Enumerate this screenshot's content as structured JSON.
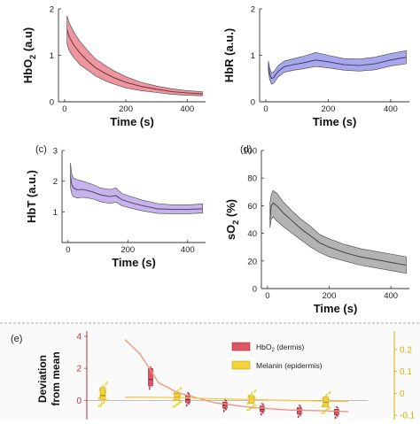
{
  "panel_labels": {
    "c": "(c)",
    "d": "(d)",
    "e": "(e)"
  },
  "chart_data": [
    {
      "id": "hbo2",
      "type": "area",
      "ylabel": "HbO",
      "ylabel_sub": "2",
      "ylabel_unit": " (a.u)",
      "xlabel": "Time (s)",
      "xlim": [
        -20,
        460
      ],
      "ylim": [
        0,
        2
      ],
      "xticks": [
        0,
        200,
        400
      ],
      "yticks": [
        0,
        1,
        2
      ],
      "color": "#e8737f",
      "x": [
        8,
        15,
        30,
        50,
        75,
        100,
        130,
        160,
        200,
        250,
        300,
        350,
        400,
        450
      ],
      "mean": [
        1.55,
        1.4,
        1.22,
        1.05,
        0.88,
        0.74,
        0.62,
        0.52,
        0.42,
        0.33,
        0.27,
        0.22,
        0.19,
        0.17
      ],
      "upper": [
        1.85,
        1.7,
        1.5,
        1.3,
        1.1,
        0.93,
        0.79,
        0.67,
        0.54,
        0.42,
        0.34,
        0.28,
        0.24,
        0.22
      ],
      "lower": [
        1.25,
        1.1,
        0.95,
        0.8,
        0.68,
        0.56,
        0.46,
        0.38,
        0.3,
        0.24,
        0.2,
        0.16,
        0.14,
        0.13
      ]
    },
    {
      "id": "hbr",
      "type": "area",
      "ylabel": "HbR",
      "ylabel_unit": " (a.u.)",
      "xlabel": "Time (s)",
      "xlim": [
        -20,
        460
      ],
      "ylim": [
        0,
        2
      ],
      "xticks": [
        0,
        200,
        400
      ],
      "yticks": [
        0,
        1,
        2
      ],
      "color": "#8c8ae6",
      "x": [
        8,
        12,
        18,
        25,
        40,
        60,
        90,
        120,
        160,
        200,
        250,
        300,
        350,
        400,
        450
      ],
      "mean": [
        0.78,
        0.6,
        0.5,
        0.52,
        0.66,
        0.76,
        0.8,
        0.84,
        0.9,
        0.86,
        0.8,
        0.78,
        0.82,
        0.9,
        0.96
      ],
      "upper": [
        0.88,
        0.72,
        0.62,
        0.64,
        0.78,
        0.88,
        0.93,
        0.98,
        1.06,
        1.0,
        0.93,
        0.92,
        0.96,
        1.04,
        1.1
      ],
      "lower": [
        0.66,
        0.48,
        0.38,
        0.4,
        0.54,
        0.64,
        0.68,
        0.71,
        0.76,
        0.73,
        0.68,
        0.66,
        0.69,
        0.77,
        0.82
      ]
    },
    {
      "id": "hbt",
      "type": "area",
      "ylabel": "HbT",
      "ylabel_unit": " (a.u.)",
      "xlabel": "Time (s)",
      "xlim": [
        -20,
        460
      ],
      "ylim": [
        0,
        3
      ],
      "xticks": [
        0,
        200,
        400
      ],
      "yticks": [
        1,
        2,
        3
      ],
      "color": "#b39ae6",
      "x": [
        8,
        12,
        18,
        30,
        50,
        80,
        110,
        140,
        160,
        180,
        210,
        250,
        300,
        350,
        400,
        450
      ],
      "mean": [
        2.2,
        1.9,
        1.78,
        1.72,
        1.73,
        1.66,
        1.55,
        1.5,
        1.53,
        1.4,
        1.3,
        1.2,
        1.1,
        1.08,
        1.08,
        1.1
      ],
      "upper": [
        2.6,
        2.25,
        2.1,
        2.05,
        2.0,
        1.9,
        1.77,
        1.73,
        1.78,
        1.6,
        1.5,
        1.38,
        1.27,
        1.23,
        1.23,
        1.26
      ],
      "lower": [
        1.8,
        1.6,
        1.5,
        1.45,
        1.47,
        1.43,
        1.33,
        1.27,
        1.32,
        1.2,
        1.12,
        1.03,
        0.95,
        0.94,
        0.94,
        0.96
      ]
    },
    {
      "id": "so2",
      "type": "area",
      "ylabel": "sO",
      "ylabel_sub": "2",
      "ylabel_unit": "  (%)",
      "xlabel": "Time (s)",
      "xlim": [
        -20,
        460
      ],
      "ylim": [
        0,
        100
      ],
      "xticks": [
        0,
        200,
        400
      ],
      "yticks": [
        0,
        20,
        40,
        60,
        80,
        100
      ],
      "color": "#9a9a9a",
      "x": [
        8,
        12,
        18,
        30,
        50,
        80,
        110,
        140,
        170,
        200,
        250,
        300,
        350,
        400,
        450
      ],
      "mean": [
        50,
        60,
        62,
        60,
        55,
        49,
        43,
        38,
        33,
        30,
        26,
        23,
        21,
        19,
        17
      ],
      "upper": [
        62,
        68,
        71,
        69,
        63,
        56,
        50,
        45,
        39,
        36,
        32,
        29,
        27,
        25,
        23
      ],
      "lower": [
        44,
        50,
        52,
        49,
        45,
        40,
        35,
        30,
        26,
        23,
        20,
        17,
        15,
        13,
        11
      ]
    },
    {
      "id": "deviation",
      "type": "scatter",
      "ylabel": "Deviation",
      "ylabel2": "from mean",
      "ylim": [
        -1.2,
        4
      ],
      "yticks": [
        0,
        2,
        4
      ],
      "ytick_labels": [
        "0",
        "2",
        "4"
      ],
      "y2lim": [
        -0.12,
        0.26
      ],
      "y2ticks": [
        0.2,
        0.1,
        0,
        -0.1
      ],
      "y2tick_labels": [
        "0.2",
        "0.1",
        "0",
        "-0.1"
      ],
      "legend": [
        "HbO2 (dermis)",
        "Melanin (epidermis)"
      ],
      "legend_main": [
        "HbO",
        "Melanin (epidermis)"
      ],
      "legend_sub": "2",
      "legend_suffix": " (dermis)",
      "hbo2_color": "#e05563",
      "melanin_color": "#f2d33a",
      "hbo2_boxes": [
        {
          "x": 1,
          "q1": 0.9,
          "q3": 2.0,
          "median": 1.3
        },
        {
          "x": 2,
          "q1": -0.15,
          "q3": 0.35,
          "median": 0.05
        },
        {
          "x": 3,
          "q1": -0.5,
          "q3": -0.1,
          "median": -0.3
        },
        {
          "x": 4,
          "q1": -0.7,
          "q3": -0.35,
          "median": -0.55
        },
        {
          "x": 5,
          "q1": -0.85,
          "q3": -0.45,
          "median": -0.65
        },
        {
          "x": 6,
          "q1": -0.9,
          "q3": -0.55,
          "median": -0.7
        }
      ],
      "melanin_boxes": [
        {
          "x": 0,
          "q1": 0.05,
          "q3": 0.8,
          "median": 0.3
        },
        {
          "x": 2,
          "q1": 0.0,
          "q3": 0.45,
          "median": 0.2
        },
        {
          "x": 4,
          "q1": -0.2,
          "q3": 0.3,
          "median": 0.05
        },
        {
          "x": 6,
          "q1": -0.4,
          "q3": 0.2,
          "median": -0.1
        }
      ],
      "hbo2_trend": [
        [
          0.6,
          3.8
        ],
        [
          1,
          2.9
        ],
        [
          1.5,
          1.1
        ],
        [
          2,
          0.5
        ],
        [
          3,
          -0.15
        ],
        [
          4,
          -0.45
        ],
        [
          5,
          -0.6
        ],
        [
          6,
          -0.65
        ],
        [
          6.6,
          -0.7
        ]
      ],
      "melanin_trend": [
        [
          0.6,
          0.2
        ],
        [
          1,
          0.2
        ],
        [
          2,
          0.18
        ],
        [
          3,
          0.1
        ],
        [
          4,
          0.05
        ],
        [
          5,
          0.0
        ],
        [
          6,
          -0.05
        ],
        [
          6.6,
          -0.07
        ]
      ]
    }
  ]
}
